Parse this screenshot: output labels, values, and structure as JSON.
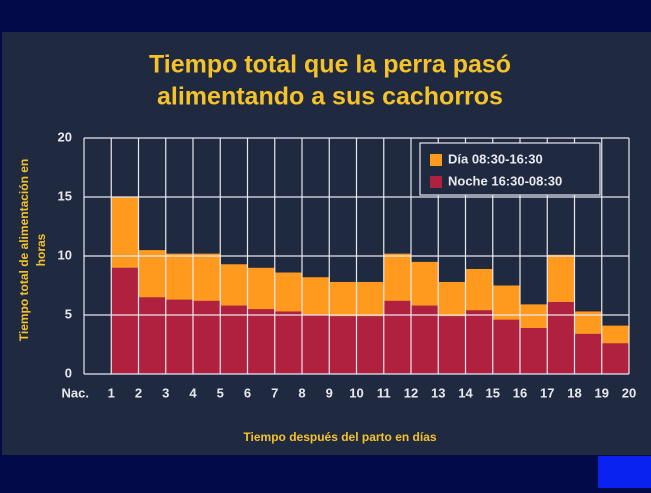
{
  "chart_data": {
    "type": "stacked_bar",
    "title": [
      "Tiempo total que la perra pasó",
      "alimentando a sus cachorros"
    ],
    "ylabel": [
      "Tiempo total de alimentación en",
      "horas"
    ],
    "xlabel": "Tiempo después del parto en días",
    "x": [
      1,
      2,
      3,
      4,
      5,
      6,
      7,
      8,
      9,
      10,
      11,
      12,
      13,
      14,
      15,
      16,
      17,
      18,
      19
    ],
    "series": [
      {
        "name": "Noche 16:30-08:30",
        "color": "#b0213f",
        "values": [
          9,
          6.5,
          6.3,
          6.2,
          5.8,
          5.5,
          5.3,
          5,
          4.9,
          4.9,
          6.2,
          5.8,
          4.9,
          5.4,
          4.6,
          3.9,
          6.1,
          3.4,
          2.6
        ]
      },
      {
        "name": "Día 08:30-16:30",
        "color": "#ff9a1f",
        "values": [
          6,
          4,
          3.9,
          4,
          3.5,
          3.5,
          3.3,
          3.2,
          2.9,
          2.9,
          4,
          3.7,
          2.9,
          3.5,
          2.9,
          2,
          4,
          1.9,
          1.5
        ]
      }
    ],
    "xlim": [
      0,
      20
    ],
    "xticks": [
      {
        "value": 0,
        "label": "Nac."
      },
      1,
      2,
      3,
      4,
      5,
      6,
      7,
      8,
      9,
      10,
      11,
      12,
      13,
      14,
      15,
      16,
      17,
      18,
      19,
      20
    ],
    "ylim": [
      0,
      20
    ],
    "yticks": [
      0,
      5,
      10,
      15,
      20
    ],
    "grid": true,
    "legend": "upper right"
  }
}
